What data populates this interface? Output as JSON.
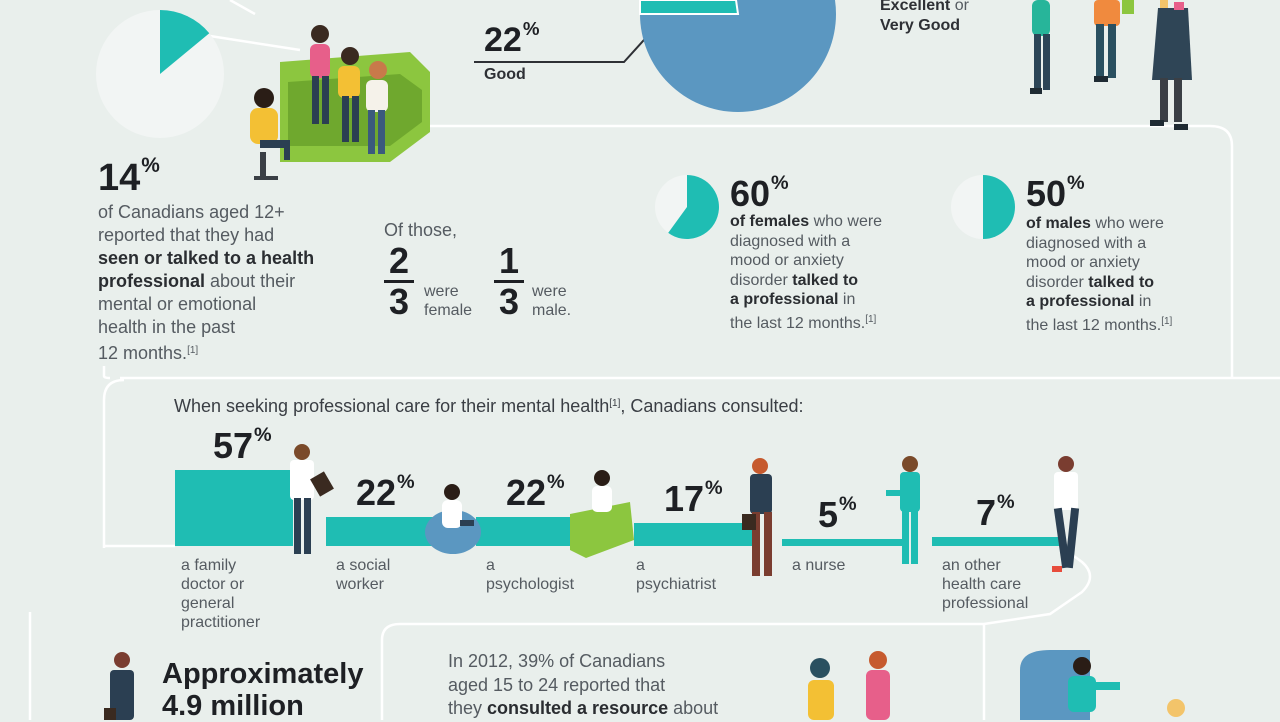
{
  "top": {
    "good_pct": "22",
    "good_label": "Good",
    "excellent_label_1": "Excellent",
    "excellent_label_or": " or",
    "excellent_label_2": "Very Good"
  },
  "consult": {
    "pct": "14",
    "line1": "of Canadians aged 12+",
    "line2": "reported that they had",
    "bold1": "seen or talked to a health",
    "bold2": "professional",
    "line3": " about their",
    "line4": "mental or emotional",
    "line5": "health in the past",
    "line6": "12 months.",
    "ref": "[1]",
    "pie_value": 0.14
  },
  "of_those": {
    "label": "Of those,",
    "female_num": "2",
    "female_den": "3",
    "female_text1": "were",
    "female_text2": "female",
    "male_num": "1",
    "male_den": "3",
    "male_text1": "were",
    "male_text2": "male."
  },
  "females": {
    "pct": "60",
    "pie_value": 0.6,
    "b1": "of females",
    "t1": " who were",
    "t2": "diagnosed with a",
    "t3": "mood or anxiety",
    "t4": "disorder ",
    "b2": "talked to",
    "b3": "a professional",
    "t5": " in",
    "t6": "the last 12 months.",
    "ref": "[1]"
  },
  "males": {
    "pct": "50",
    "pie_value": 0.5,
    "b1": "of males",
    "t1": " who were",
    "t2": "diagnosed with a",
    "t3": "mood or anxiety",
    "t4": "disorder ",
    "b2": "talked to",
    "b3": "a professional",
    "t5": " in",
    "t6": "the last 12 months.",
    "ref": "[1]"
  },
  "seeking": {
    "intro_a": "When seeking professional care for their mental health",
    "intro_ref": "[1]",
    "intro_b": ", Canadians consulted:"
  },
  "chart_data": {
    "type": "bar",
    "categories": [
      "a family doctor or general practitioner",
      "a social worker",
      "a psychologist",
      "a psychiatrist",
      "a nurse",
      "an other health care professional"
    ],
    "values": [
      57,
      22,
      22,
      17,
      5,
      7
    ],
    "value_labels": [
      "57",
      "22",
      "22",
      "17",
      "5",
      "7"
    ],
    "label_lines": [
      [
        "a family",
        "doctor or",
        "general",
        "practitioner"
      ],
      [
        "a social",
        "worker"
      ],
      [
        "a",
        "psychologist"
      ],
      [
        "a",
        "psychiatrist"
      ],
      [
        "a nurse"
      ],
      [
        "an other",
        "health care",
        "professional"
      ]
    ],
    "unit": "%",
    "color": "#1fbdb3"
  },
  "bottom": {
    "approx": "Approximately",
    "million": "4.9 million",
    "p1": "In 2012, 39% of Canadians",
    "p2": "aged 15 to 24 reported that",
    "p3a": "they ",
    "p3b": "consulted a resource",
    "p3c": " about"
  },
  "colors": {
    "teal": "#1fbdb3",
    "pie_blue": "#5b97c1",
    "background": "#e9efec",
    "lime": "#8cc63f"
  }
}
